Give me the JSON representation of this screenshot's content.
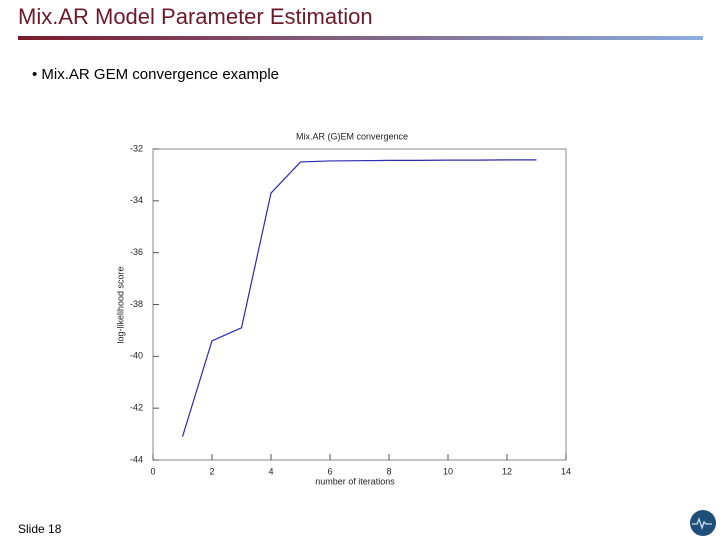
{
  "slide": {
    "title": "Mix.AR Model Parameter Estimation",
    "bullet": "Mix.AR GEM convergence example",
    "footer": "Slide 18"
  },
  "chart_data": {
    "type": "line",
    "title": "Mix.AR (G)EM convergence",
    "x_label": "number of iterations",
    "y_label": "log-likelihood score",
    "x": [
      1,
      2,
      3,
      4,
      5,
      6,
      7,
      8,
      9,
      10,
      11,
      12,
      13
    ],
    "series": [
      {
        "name": "log-likelihood",
        "color": "#2b2bb0",
        "values": [
          -43.1,
          -39.4,
          -38.9,
          -33.7,
          -32.5,
          -32.46,
          -32.45,
          -32.44,
          -32.44,
          -32.43,
          -32.43,
          -32.42,
          -32.42
        ]
      }
    ],
    "xlim": [
      0,
      14
    ],
    "xticks": [
      0,
      2,
      4,
      6,
      8,
      10,
      12,
      14
    ],
    "ylim": [
      -44,
      -32
    ],
    "yticks": [
      -32,
      -34,
      -36,
      -38,
      -40,
      -42,
      -44
    ]
  }
}
